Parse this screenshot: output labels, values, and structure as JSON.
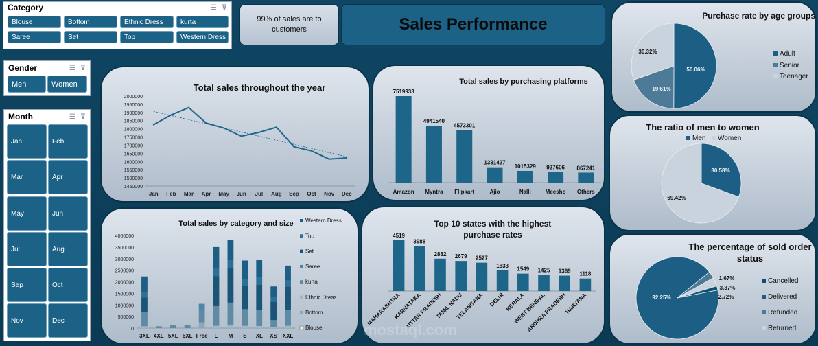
{
  "colors": {
    "background": "#0d3f5a",
    "button": "#1b6286",
    "bar": "#1d6689",
    "pie_dark": "#1d5f84",
    "pie_mid": "#4d7b97",
    "pie_light": "#c9d3de"
  },
  "slicers": {
    "category": {
      "title": "Category",
      "items": [
        "Blouse",
        "Bottom",
        "Ethnic Dress",
        "kurta",
        "Saree",
        "Set",
        "Top",
        "Western Dress"
      ]
    },
    "gender": {
      "title": "Gender",
      "items": [
        "Men",
        "Women"
      ]
    },
    "month": {
      "title": "Month",
      "items": [
        "Jan",
        "Feb",
        "Mar",
        "Apr",
        "May",
        "Jun",
        "Jul",
        "Aug",
        "Sep",
        "Oct",
        "Nov",
        "Dec"
      ]
    }
  },
  "kpi": {
    "text": "99% of sales are to customers"
  },
  "header": {
    "title": "Sales Performance"
  },
  "watermark": {
    "text": "mostaql.com"
  },
  "chart_data": [
    {
      "id": "monthly",
      "type": "line",
      "title": "Total sales throughout the year",
      "categories": [
        "Jan",
        "Feb",
        "Mar",
        "Apr",
        "May",
        "Jun",
        "Jul",
        "Aug",
        "Sep",
        "Oct",
        "Nov",
        "Dec"
      ],
      "values": [
        1825000,
        1885000,
        1930000,
        1835000,
        1805000,
        1755000,
        1778000,
        1810000,
        1690000,
        1665000,
        1615000,
        1622000
      ],
      "trendline": true,
      "ylim": [
        1450000,
        2000000
      ],
      "yticks": [
        "2000000",
        "1950000",
        "1900000",
        "1850000",
        "1800000",
        "1750000",
        "1700000",
        "1650000",
        "1600000",
        "1550000",
        "1500000",
        "1450000"
      ]
    },
    {
      "id": "platforms",
      "type": "bar",
      "title": "Total sales by purchasing platforms",
      "categories": [
        "Amazon",
        "Myntra",
        "Flipkart",
        "Ajio",
        "Nalli",
        "Meesho",
        "Others"
      ],
      "values": [
        7519933,
        4941540,
        4573301,
        1331427,
        1015329,
        927606,
        867241
      ],
      "labels": [
        "7519933",
        "4941540",
        "4573301",
        "1331427",
        "1015329",
        "927606",
        "867241"
      ]
    },
    {
      "id": "category_size",
      "type": "bar",
      "stacked": true,
      "title": "Total sales by category and size",
      "categories": [
        "3XL",
        "4XL",
        "5XL",
        "6XL",
        "Free",
        "L",
        "M",
        "S",
        "XL",
        "XS",
        "XXL"
      ],
      "ylim": [
        0,
        4000000
      ],
      "yticks": [
        "4000000",
        "3500000",
        "3000000",
        "2500000",
        "2000000",
        "1500000",
        "1000000",
        "500000",
        "0"
      ],
      "legend": [
        "Western Dress",
        "Top",
        "Set",
        "Saree",
        "kurta",
        "Ethnic Dress",
        "Bottom",
        "Blouse"
      ],
      "series": [
        {
          "name": "Western Dress",
          "values": [
            700000,
            0,
            0,
            0,
            0,
            900000,
            850000,
            800000,
            750000,
            450000,
            650000
          ]
        },
        {
          "name": "Top",
          "values": [
            200000,
            0,
            0,
            0,
            0,
            350000,
            350000,
            300000,
            300000,
            200000,
            250000
          ]
        },
        {
          "name": "Set",
          "values": [
            650000,
            0,
            0,
            0,
            0,
            1300000,
            1500000,
            1000000,
            1100000,
            800000,
            1000000
          ]
        },
        {
          "name": "Saree",
          "values": [
            0,
            0,
            0,
            0,
            250000,
            0,
            0,
            0,
            0,
            0,
            0
          ]
        },
        {
          "name": "kurta",
          "values": [
            600000,
            80000,
            120000,
            140000,
            550000,
            850000,
            950000,
            720000,
            700000,
            300000,
            700000
          ]
        },
        {
          "name": "Ethnic Dress",
          "values": [
            80000,
            0,
            0,
            0,
            0,
            100000,
            150000,
            100000,
            90000,
            50000,
            100000
          ]
        },
        {
          "name": "Bottom",
          "values": [
            0,
            0,
            0,
            0,
            250000,
            0,
            0,
            0,
            0,
            0,
            0
          ]
        },
        {
          "name": "Blouse",
          "values": [
            0,
            0,
            0,
            0,
            0,
            0,
            0,
            0,
            0,
            0,
            0
          ]
        }
      ]
    },
    {
      "id": "states",
      "type": "bar",
      "title": "Top 10 states with the highest purchase rates",
      "categories": [
        "MAHARASHTRA",
        "KARNATAKA",
        "UTTAR PRADESH",
        "TAMIL NADU",
        "TELANGANA",
        "DELHI",
        "KERALA",
        "WEST BENGAL",
        "ANDHRA PRADESH",
        "HARYANA"
      ],
      "values": [
        4519,
        3988,
        2882,
        2679,
        2527,
        1833,
        1549,
        1425,
        1369,
        1118
      ],
      "labels": [
        "4519",
        "3988",
        "2882",
        "2679",
        "2527",
        "1833",
        "1549",
        "1425",
        "1369",
        "1118"
      ]
    },
    {
      "id": "age",
      "type": "pie",
      "title": "Purchase rate by age groups",
      "categories": [
        "Adult",
        "Senior",
        "Teenager"
      ],
      "values": [
        50.06,
        19.61,
        30.32
      ],
      "labels": [
        "50.06%",
        "19.61%",
        "30.32%"
      ]
    },
    {
      "id": "gender",
      "type": "pie",
      "title": "The ratio of men to women",
      "categories": [
        "Men",
        "Women"
      ],
      "values": [
        30.58,
        69.42
      ],
      "labels": [
        "30.58%",
        "69.42%"
      ]
    },
    {
      "id": "status",
      "type": "pie",
      "title": "The percentage of sold order status",
      "categories": [
        "Cancelled",
        "Delivered",
        "Refunded",
        "Returned"
      ],
      "values": [
        1.67,
        92.25,
        2.72,
        3.37
      ],
      "labels": [
        "1.67%",
        "92.25%",
        "2.72%",
        "3.37%"
      ]
    }
  ]
}
